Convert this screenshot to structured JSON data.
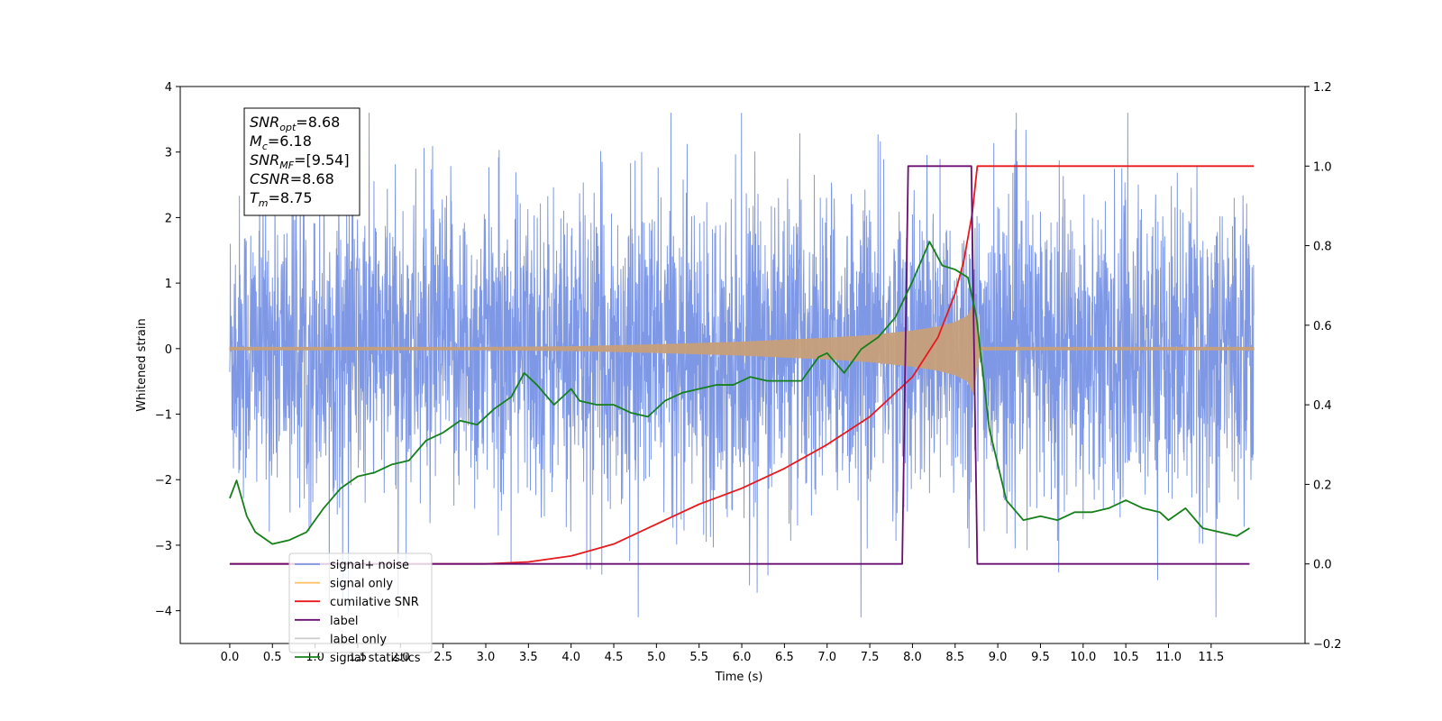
{
  "chart_data": {
    "type": "line",
    "xlabel": "Time (s)",
    "ylabel": "Whitened strain",
    "xlim": [
      -0.58,
      12.6
    ],
    "ylim": [
      -4.5,
      4
    ],
    "y2lim": [
      -0.2,
      1.2
    ],
    "x_ticks": [
      "0.0",
      "0.5",
      "1.0",
      "1.5",
      "2.0",
      "2.5",
      "3.0",
      "3.5",
      "4.0",
      "4.5",
      "5.0",
      "5.5",
      "6.0",
      "6.5",
      "7.0",
      "7.5",
      "8.0",
      "8.5",
      "9.0",
      "9.5",
      "10.0",
      "10.5",
      "11.0",
      "11.5"
    ],
    "y_ticks": [
      "4",
      "3",
      "2",
      "1",
      "0",
      "−1",
      "−2",
      "−3",
      "−4"
    ],
    "y2_ticks": [
      "1.2",
      "1.0",
      "0.8",
      "0.6",
      "0.4",
      "0.2",
      "0.0",
      "−0.2"
    ],
    "annotation": [
      {
        "base": "SNR",
        "sub": "opt",
        "value": "=8.68"
      },
      {
        "base": "M",
        "sub": "c",
        "value": "=6.18"
      },
      {
        "base": "SNR",
        "sub": "MF",
        "value": "=[9.54]"
      },
      {
        "base": "CSNR",
        "sub": "",
        "value": "=8.68"
      },
      {
        "base": "T",
        "sub": "m",
        "value": "=8.75"
      }
    ],
    "legend": {
      "placement": "lower-left",
      "entries": [
        {
          "label": "signal+ noise",
          "color": "#7b96e6"
        },
        {
          "label": "signal only",
          "color": "#ffbf60"
        },
        {
          "label": "cumilative SNR",
          "color": "#e8191c"
        },
        {
          "label": "label",
          "color": "#6a0f72"
        },
        {
          "label": "label only",
          "color": "#cccccc"
        },
        {
          "label": "signal statistics",
          "color": "#15801a"
        }
      ]
    },
    "series": [
      {
        "name": "signal+ noise",
        "axis": "left",
        "color": "#7b96e6",
        "x_range": [
          0,
          12
        ],
        "amplitude_envelope": [
          -4.1,
          3.6
        ]
      },
      {
        "name": "signal only",
        "axis": "left",
        "color": "#c8a07a",
        "x_range": [
          0,
          12
        ],
        "envelope": {
          "x": [
            0,
            3.0,
            4.0,
            5.0,
            6.0,
            7.0,
            7.5,
            8.0,
            8.3,
            8.5,
            8.65,
            8.72,
            8.75,
            8.8,
            12
          ],
          "amp": [
            0.02,
            0.02,
            0.03,
            0.06,
            0.1,
            0.16,
            0.2,
            0.27,
            0.33,
            0.4,
            0.5,
            0.7,
            0.3,
            0.02,
            0.02
          ]
        }
      },
      {
        "name": "cumilative SNR",
        "axis": "right",
        "color": "#e8191c",
        "x": [
          0,
          3.0,
          3.5,
          4.0,
          4.5,
          5.0,
          5.5,
          6.0,
          6.5,
          7.0,
          7.5,
          8.0,
          8.3,
          8.5,
          8.6,
          8.7,
          8.75,
          8.76,
          12
        ],
        "y": [
          0,
          0,
          0.005,
          0.02,
          0.05,
          0.1,
          0.15,
          0.19,
          0.24,
          0.3,
          0.37,
          0.47,
          0.57,
          0.68,
          0.76,
          0.88,
          0.98,
          1.0,
          1.0
        ]
      },
      {
        "name": "label",
        "axis": "right",
        "color": "#6a0f72",
        "x": [
          0,
          7.88,
          7.95,
          8.69,
          8.76,
          11.95
        ],
        "y": [
          0,
          0,
          1,
          1,
          0,
          0
        ]
      },
      {
        "name": "signal statistics",
        "axis": "right",
        "color": "#15801a",
        "x": [
          0,
          0.08,
          0.2,
          0.3,
          0.5,
          0.7,
          0.8,
          0.9,
          1.0,
          1.1,
          1.3,
          1.5,
          1.7,
          1.9,
          2.1,
          2.3,
          2.5,
          2.7,
          2.9,
          3.1,
          3.3,
          3.45,
          3.6,
          3.8,
          4.0,
          4.1,
          4.3,
          4.5,
          4.7,
          4.9,
          5.1,
          5.3,
          5.5,
          5.7,
          5.9,
          6.1,
          6.3,
          6.5,
          6.7,
          6.9,
          7.0,
          7.2,
          7.4,
          7.6,
          7.8,
          8.0,
          8.2,
          8.35,
          8.5,
          8.65,
          8.75,
          8.9,
          9.1,
          9.3,
          9.5,
          9.7,
          9.9,
          10.1,
          10.3,
          10.5,
          10.7,
          10.9,
          11.0,
          11.2,
          11.4,
          11.6,
          11.8,
          11.95
        ],
        "y": [
          0.165,
          0.21,
          0.12,
          0.08,
          0.05,
          0.06,
          0.07,
          0.08,
          0.11,
          0.14,
          0.19,
          0.22,
          0.23,
          0.25,
          0.26,
          0.31,
          0.33,
          0.36,
          0.35,
          0.39,
          0.42,
          0.48,
          0.45,
          0.4,
          0.44,
          0.41,
          0.4,
          0.4,
          0.38,
          0.37,
          0.41,
          0.43,
          0.44,
          0.45,
          0.45,
          0.47,
          0.46,
          0.46,
          0.46,
          0.52,
          0.53,
          0.48,
          0.54,
          0.57,
          0.62,
          0.71,
          0.81,
          0.75,
          0.74,
          0.72,
          0.62,
          0.34,
          0.16,
          0.11,
          0.12,
          0.11,
          0.13,
          0.13,
          0.14,
          0.16,
          0.14,
          0.13,
          0.11,
          0.14,
          0.09,
          0.08,
          0.07,
          0.09
        ]
      }
    ]
  }
}
